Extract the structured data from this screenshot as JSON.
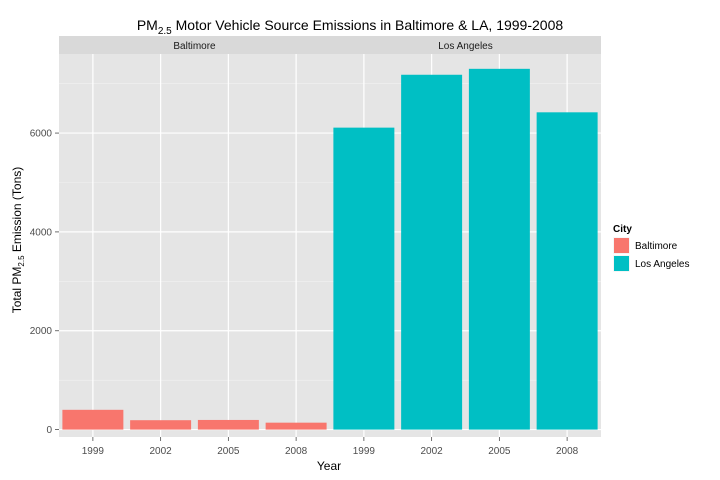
{
  "chart_data": {
    "type": "bar",
    "title": "PM2.5 Motor Vehicle Source Emissions in Baltimore & LA, 1999-2008",
    "title_parts": {
      "main": "PM",
      "sub": "2.5",
      "rest": " Motor Vehicle Source Emissions in Baltimore & LA, 1999-2008"
    },
    "xlabel": "Year",
    "ylabel": "Total PM2.5 Emission (Tons)",
    "ylabel_parts": {
      "main": "Total PM",
      "sub": "2.5",
      "rest": " Emission (Tons)"
    },
    "categories": [
      "1999",
      "2002",
      "2005",
      "2008"
    ],
    "ylim": [
      -150,
      7600
    ],
    "yticks": [
      0,
      2000,
      4000,
      6000
    ],
    "grid": true,
    "legend": {
      "title": "City",
      "position": "right"
    },
    "facets": [
      {
        "name": "Baltimore",
        "color": "#F8766D",
        "values": [
          400,
          190,
          195,
          140
        ]
      },
      {
        "name": "Los Angeles",
        "color": "#00BFC4",
        "values": [
          6110,
          7180,
          7300,
          6420
        ]
      }
    ]
  }
}
